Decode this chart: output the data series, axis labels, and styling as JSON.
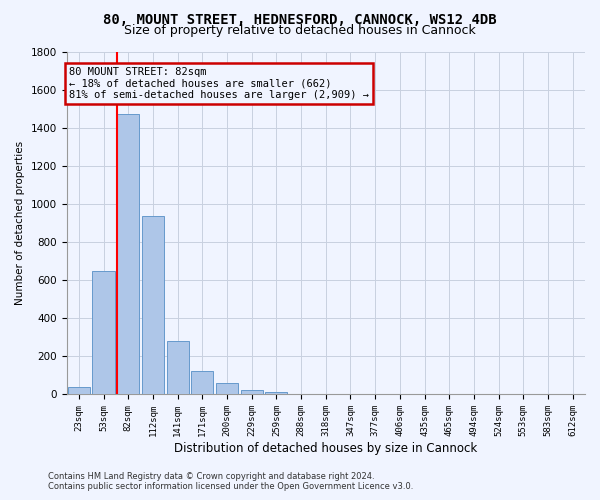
{
  "title": "80, MOUNT STREET, HEDNESFORD, CANNOCK, WS12 4DB",
  "subtitle": "Size of property relative to detached houses in Cannock",
  "xlabel": "Distribution of detached houses by size in Cannock",
  "ylabel": "Number of detached properties",
  "categories": [
    "23sqm",
    "53sqm",
    "82sqm",
    "112sqm",
    "141sqm",
    "171sqm",
    "200sqm",
    "229sqm",
    "259sqm",
    "288sqm",
    "318sqm",
    "347sqm",
    "377sqm",
    "406sqm",
    "435sqm",
    "465sqm",
    "494sqm",
    "524sqm",
    "553sqm",
    "583sqm",
    "612sqm"
  ],
  "values": [
    38,
    650,
    1470,
    935,
    280,
    125,
    60,
    25,
    15,
    0,
    0,
    0,
    0,
    0,
    0,
    0,
    0,
    0,
    0,
    0,
    0
  ],
  "bar_color": "#aec6e8",
  "bar_edge_color": "#6699cc",
  "red_line_index": 2,
  "annotation_title": "80 MOUNT STREET: 82sqm",
  "annotation_line2": "← 18% of detached houses are smaller (662)",
  "annotation_line3": "81% of semi-detached houses are larger (2,909) →",
  "annotation_box_color": "#cc0000",
  "ylim": [
    0,
    1800
  ],
  "yticks": [
    0,
    200,
    400,
    600,
    800,
    1000,
    1200,
    1400,
    1600,
    1800
  ],
  "footer_line1": "Contains HM Land Registry data © Crown copyright and database right 2024.",
  "footer_line2": "Contains public sector information licensed under the Open Government Licence v3.0.",
  "bg_color": "#f0f4ff",
  "title_fontsize": 10,
  "subtitle_fontsize": 9
}
